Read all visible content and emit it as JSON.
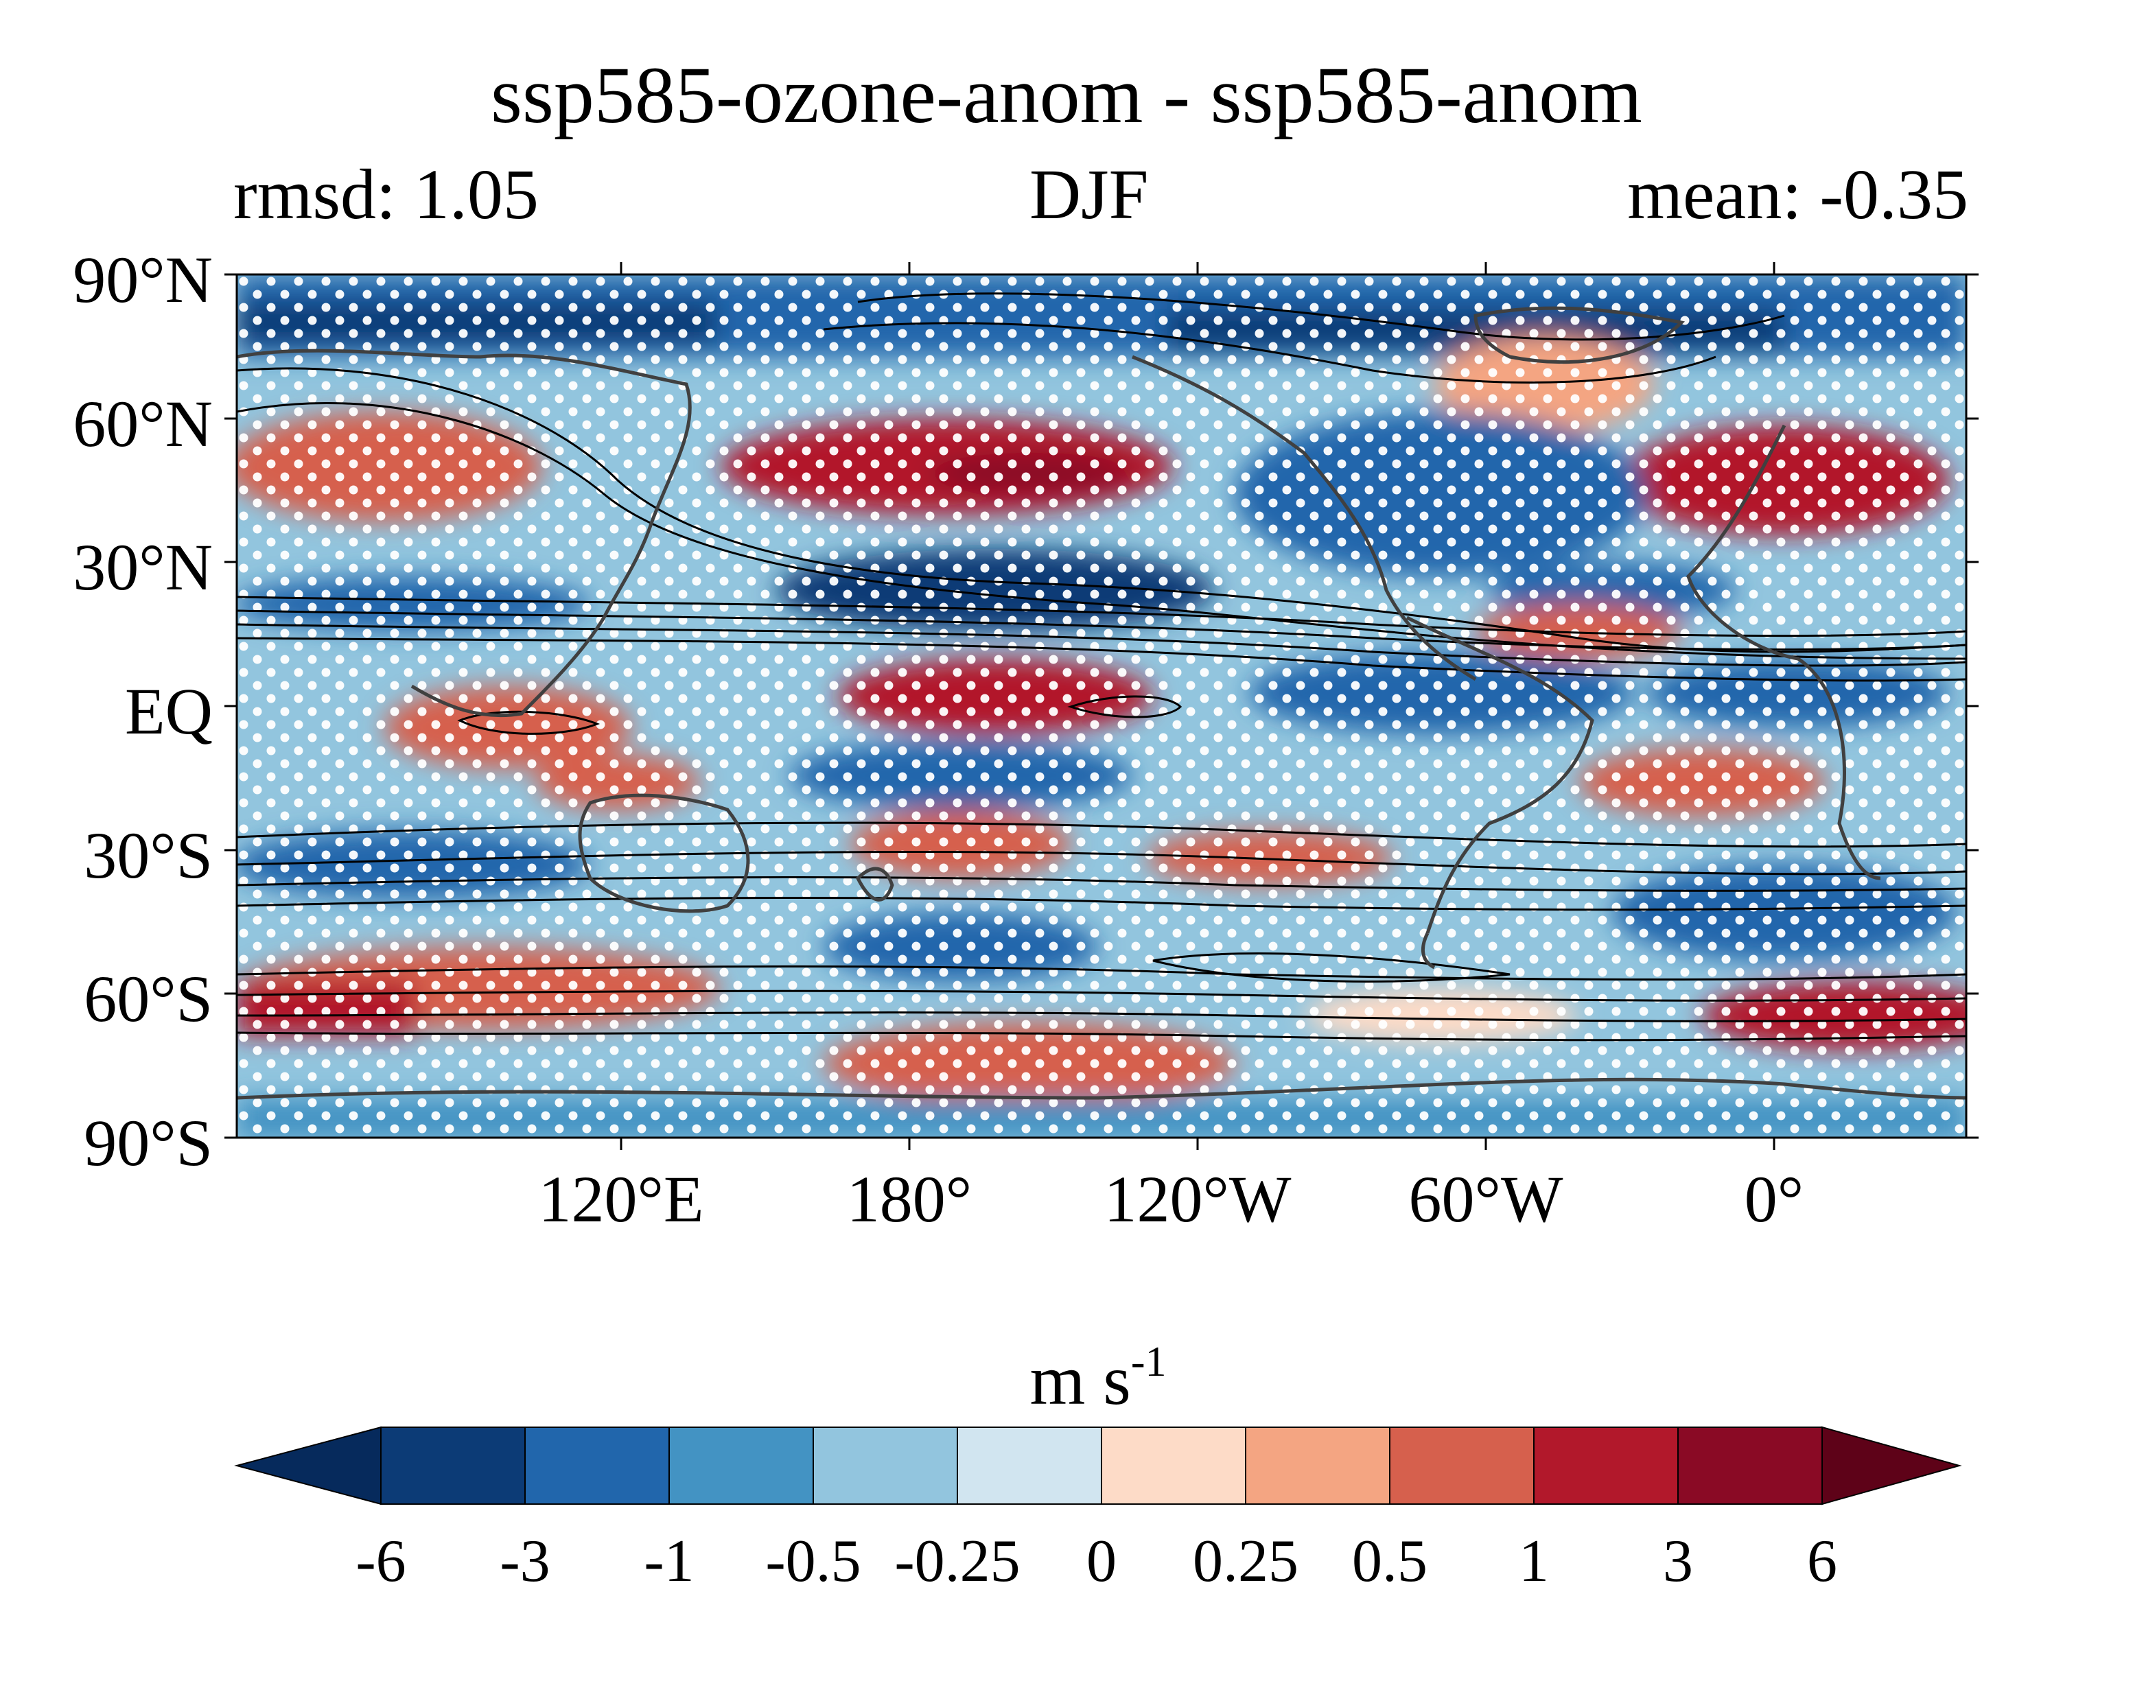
{
  "figure": {
    "title": "ssp585-ozone-anom - ssp585-anom",
    "left_label": "rmsd: 1.05",
    "center_label": "DJF",
    "right_label": "mean: -0.35"
  },
  "axes": {
    "lat_ticks": [
      "90°N",
      "60°N",
      "30°N",
      "EQ",
      "30°S",
      "60°S",
      "90°S"
    ],
    "lon_ticks": [
      "120°E",
      "180°",
      "120°W",
      "60°W",
      "0°"
    ],
    "lat_range": [
      -90,
      90
    ],
    "lon_range": [
      40,
      400
    ]
  },
  "colorbar": {
    "unit_base": "m s",
    "unit_exp": "-1",
    "levels": [
      "-6",
      "-3",
      "-1",
      "-0.5",
      "-0.25",
      "0",
      "0.25",
      "0.5",
      "1",
      "3",
      "6"
    ],
    "colors": [
      "#062a5c",
      "#0c3b76",
      "#2166ac",
      "#4393c3",
      "#92c5de",
      "#d1e5f0",
      "#fddbc7",
      "#f4a582",
      "#d6604d",
      "#b2182b",
      "#8a0a25",
      "#5e0218"
    ]
  },
  "map_colors": {
    "stipple": "#ffffff",
    "coastline": "#404040",
    "contour": "#000000"
  }
}
